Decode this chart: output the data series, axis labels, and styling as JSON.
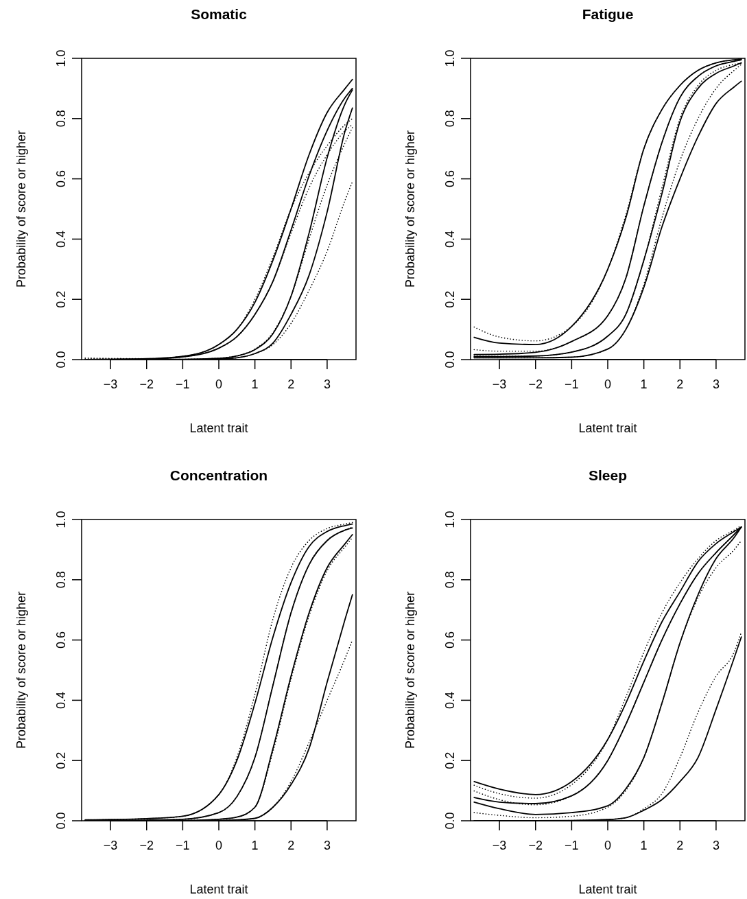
{
  "chart_data": [
    {
      "type": "line",
      "title": "Somatic",
      "xlabel": "Latent trait",
      "ylabel": "Probability of score or higher",
      "xlim": [
        -3.8,
        3.8
      ],
      "ylim": [
        0,
        1
      ],
      "xticks": [
        {
          "value": -3,
          "label": "−3"
        },
        {
          "value": -2,
          "label": "−2"
        },
        {
          "value": -1,
          "label": "−1"
        },
        0,
        1,
        2,
        3
      ],
      "yticks": [
        {
          "value": 0,
          "label": "0.0"
        },
        {
          "value": 0.2,
          "label": "0.2"
        },
        {
          "value": 0.4,
          "label": "0.4"
        },
        {
          "value": 0.6,
          "label": "0.6"
        },
        {
          "value": 0.8,
          "label": "0.8"
        },
        {
          "value": 1,
          "label": "1.0"
        }
      ],
      "x": [
        -3.7,
        -3,
        -2,
        -1,
        0,
        0.5,
        1,
        1.5,
        2,
        2.5,
        3,
        3.5,
        3.7
      ],
      "series": [
        {
          "color": "#000000",
          "line_style": "solid",
          "values": [
            0,
            0.001,
            0.003,
            0.011,
            0.05,
            0.1,
            0.19,
            0.33,
            0.5,
            0.68,
            0.82,
            0.9,
            0.93
          ]
        },
        {
          "color": "#000000",
          "line_style": "dotted",
          "values": [
            0.005,
            0.004,
            0.003,
            0.011,
            0.05,
            0.1,
            0.2,
            0.34,
            0.5,
            0.62,
            0.71,
            0.78,
            0.8
          ]
        },
        {
          "color": "#000000",
          "line_style": "solid",
          "values": [
            0,
            0.001,
            0.002,
            0.009,
            0.038,
            0.076,
            0.15,
            0.26,
            0.43,
            0.61,
            0.76,
            0.87,
            0.9
          ]
        },
        {
          "color": "#000000",
          "line_style": "dotted",
          "values": [
            0.004,
            0.003,
            0.002,
            0.009,
            0.038,
            0.076,
            0.15,
            0.26,
            0.42,
            0.57,
            0.68,
            0.76,
            0.78
          ]
        },
        {
          "color": "#000000",
          "line_style": "solid",
          "values": [
            0,
            0,
            0,
            0.001,
            0.004,
            0.012,
            0.033,
            0.086,
            0.21,
            0.42,
            0.67,
            0.85,
            0.895
          ]
        },
        {
          "color": "#000000",
          "line_style": "dotted",
          "values": [
            0,
            0,
            0,
            0.001,
            0.005,
            0.013,
            0.035,
            0.09,
            0.21,
            0.4,
            0.58,
            0.72,
            0.77
          ]
        },
        {
          "color": "#000000",
          "line_style": "solid",
          "values": [
            0,
            0,
            0,
            0,
            0.002,
            0.006,
            0.02,
            0.055,
            0.15,
            0.28,
            0.49,
            0.76,
            0.835
          ]
        },
        {
          "color": "#000000",
          "line_style": "dotted",
          "values": [
            0,
            0,
            0,
            0,
            0.002,
            0.006,
            0.02,
            0.05,
            0.12,
            0.23,
            0.36,
            0.53,
            0.59
          ]
        }
      ]
    },
    {
      "type": "line",
      "title": "Fatigue",
      "xlabel": "Latent trait",
      "ylabel": "Probability of score or higher",
      "xlim": [
        -3.8,
        3.8
      ],
      "ylim": [
        0,
        1
      ],
      "xticks": [
        {
          "value": -3,
          "label": "−3"
        },
        {
          "value": -2,
          "label": "−2"
        },
        {
          "value": -1,
          "label": "−1"
        },
        0,
        1,
        2,
        3
      ],
      "yticks": [
        {
          "value": 0,
          "label": "0.0"
        },
        {
          "value": 0.2,
          "label": "0.2"
        },
        {
          "value": 0.4,
          "label": "0.4"
        },
        {
          "value": 0.6,
          "label": "0.6"
        },
        {
          "value": 0.8,
          "label": "0.8"
        },
        {
          "value": 1,
          "label": "1.0"
        }
      ],
      "x": [
        -3.7,
        -3,
        -2,
        -1,
        0,
        0.5,
        1,
        1.5,
        2,
        2.5,
        3,
        3.5,
        3.7
      ],
      "series": [
        {
          "color": "#000000",
          "line_style": "solid",
          "values": [
            0.074,
            0.055,
            0.05,
            0.11,
            0.3,
            0.47,
            0.7,
            0.83,
            0.91,
            0.96,
            0.985,
            0.995,
            0.998
          ]
        },
        {
          "color": "#000000",
          "line_style": "dotted",
          "values": [
            0.108,
            0.075,
            0.062,
            0.11,
            0.3,
            0.48,
            0.7,
            0.83,
            0.91,
            0.96,
            0.985,
            0.995,
            0.998
          ]
        },
        {
          "color": "#000000",
          "line_style": "solid",
          "values": [
            0.017,
            0.018,
            0.024,
            0.06,
            0.146,
            0.27,
            0.51,
            0.72,
            0.87,
            0.94,
            0.975,
            0.99,
            0.995
          ]
        },
        {
          "color": "#000000",
          "line_style": "dotted",
          "values": [
            0.033,
            0.028,
            0.028,
            0.06,
            0.146,
            0.27,
            0.51,
            0.72,
            0.87,
            0.94,
            0.975,
            0.99,
            0.995
          ]
        },
        {
          "color": "#000000",
          "line_style": "solid",
          "values": [
            0.01,
            0.01,
            0.012,
            0.025,
            0.078,
            0.15,
            0.33,
            0.55,
            0.79,
            0.9,
            0.95,
            0.975,
            0.985
          ]
        },
        {
          "color": "#000000",
          "line_style": "dotted",
          "values": [
            0.012,
            0.011,
            0.012,
            0.025,
            0.078,
            0.15,
            0.33,
            0.57,
            0.8,
            0.91,
            0.96,
            0.98,
            0.985
          ]
        },
        {
          "color": "#000000",
          "line_style": "solid",
          "values": [
            0.006,
            0.006,
            0.006,
            0.008,
            0.035,
            0.1,
            0.24,
            0.44,
            0.6,
            0.74,
            0.85,
            0.905,
            0.924
          ]
        },
        {
          "color": "#000000",
          "line_style": "dotted",
          "values": [
            0.006,
            0.006,
            0.006,
            0.008,
            0.035,
            0.1,
            0.25,
            0.47,
            0.66,
            0.8,
            0.9,
            0.96,
            0.98
          ]
        }
      ]
    },
    {
      "type": "line",
      "title": "Concentration",
      "xlabel": "Latent trait",
      "ylabel": "Probability of score or higher",
      "xlim": [
        -3.8,
        3.8
      ],
      "ylim": [
        0,
        1
      ],
      "xticks": [
        {
          "value": -3,
          "label": "−3"
        },
        {
          "value": -2,
          "label": "−2"
        },
        {
          "value": -1,
          "label": "−1"
        },
        0,
        1,
        2,
        3
      ],
      "yticks": [
        {
          "value": 0,
          "label": "0.0"
        },
        {
          "value": 0.2,
          "label": "0.2"
        },
        {
          "value": 0.4,
          "label": "0.4"
        },
        {
          "value": 0.6,
          "label": "0.6"
        },
        {
          "value": 0.8,
          "label": "0.8"
        },
        {
          "value": 1,
          "label": "1.0"
        }
      ],
      "x": [
        -3.7,
        -3,
        -2,
        -1,
        0,
        0.5,
        1,
        1.5,
        2,
        2.5,
        3,
        3.5,
        3.7
      ],
      "series": [
        {
          "color": "#000000",
          "line_style": "solid",
          "values": [
            0.003,
            0.004,
            0.007,
            0.015,
            0.087,
            0.2,
            0.39,
            0.61,
            0.79,
            0.91,
            0.96,
            0.98,
            0.985
          ]
        },
        {
          "color": "#000000",
          "line_style": "dotted",
          "values": [
            0.003,
            0.004,
            0.007,
            0.015,
            0.087,
            0.21,
            0.42,
            0.67,
            0.84,
            0.93,
            0.97,
            0.985,
            0.99
          ]
        },
        {
          "color": "#000000",
          "line_style": "solid",
          "values": [
            0.001,
            0.001,
            0.002,
            0.005,
            0.027,
            0.08,
            0.21,
            0.45,
            0.69,
            0.85,
            0.93,
            0.965,
            0.972
          ]
        },
        {
          "color": "#000000",
          "line_style": "dotted",
          "values": [
            0.001,
            0.001,
            0.002,
            0.005,
            0.027,
            0.08,
            0.21,
            0.45,
            0.69,
            0.85,
            0.93,
            0.965,
            0.975
          ]
        },
        {
          "color": "#000000",
          "line_style": "solid",
          "values": [
            0,
            0,
            0,
            0.001,
            0.005,
            0.012,
            0.045,
            0.24,
            0.48,
            0.69,
            0.84,
            0.92,
            0.95
          ]
        },
        {
          "color": "#000000",
          "line_style": "dotted",
          "values": [
            0,
            0,
            0,
            0.001,
            0.005,
            0.012,
            0.045,
            0.23,
            0.47,
            0.68,
            0.83,
            0.91,
            0.94
          ]
        },
        {
          "color": "#000000",
          "line_style": "solid",
          "values": [
            0,
            0,
            0,
            0,
            0.001,
            0.003,
            0.008,
            0.045,
            0.12,
            0.24,
            0.46,
            0.67,
            0.75
          ]
        },
        {
          "color": "#000000",
          "line_style": "dotted",
          "values": [
            0,
            0,
            0,
            0,
            0.001,
            0.003,
            0.008,
            0.045,
            0.13,
            0.26,
            0.4,
            0.54,
            0.6
          ]
        }
      ]
    },
    {
      "type": "line",
      "title": "Sleep",
      "xlabel": "Latent trait",
      "ylabel": "Probability of score or higher",
      "xlim": [
        -3.8,
        3.8
      ],
      "ylim": [
        0,
        1
      ],
      "xticks": [
        {
          "value": -3,
          "label": "−3"
        },
        {
          "value": -2,
          "label": "−2"
        },
        {
          "value": -1,
          "label": "−1"
        },
        0,
        1,
        2,
        3
      ],
      "yticks": [
        {
          "value": 0,
          "label": "0.0"
        },
        {
          "value": 0.2,
          "label": "0.2"
        },
        {
          "value": 0.4,
          "label": "0.4"
        },
        {
          "value": 0.6,
          "label": "0.6"
        },
        {
          "value": 0.8,
          "label": "0.8"
        },
        {
          "value": 1,
          "label": "1.0"
        }
      ],
      "x": [
        -3.7,
        -3,
        -2,
        -1,
        0,
        0.5,
        1,
        1.5,
        2,
        2.5,
        3,
        3.5,
        3.7
      ],
      "series": [
        {
          "color": "#000000",
          "line_style": "solid",
          "values": [
            0.13,
            0.105,
            0.087,
            0.13,
            0.27,
            0.39,
            0.53,
            0.66,
            0.76,
            0.86,
            0.92,
            0.96,
            0.975
          ]
        },
        {
          "color": "#000000",
          "line_style": "dotted",
          "values": [
            0.118,
            0.09,
            0.075,
            0.12,
            0.27,
            0.41,
            0.56,
            0.69,
            0.79,
            0.87,
            0.93,
            0.965,
            0.98
          ]
        },
        {
          "color": "#000000",
          "line_style": "solid",
          "values": [
            0.077,
            0.062,
            0.057,
            0.083,
            0.2,
            0.32,
            0.46,
            0.6,
            0.72,
            0.82,
            0.89,
            0.95,
            0.975
          ]
        },
        {
          "color": "#000000",
          "line_style": "dotted",
          "values": [
            0.099,
            0.07,
            0.053,
            0.083,
            0.2,
            0.32,
            0.46,
            0.6,
            0.72,
            0.82,
            0.89,
            0.95,
            0.975
          ]
        },
        {
          "color": "#000000",
          "line_style": "solid",
          "values": [
            0.062,
            0.04,
            0.021,
            0.027,
            0.05,
            0.106,
            0.21,
            0.39,
            0.59,
            0.75,
            0.87,
            0.94,
            0.975
          ]
        },
        {
          "color": "#000000",
          "line_style": "dotted",
          "values": [
            0.027,
            0.018,
            0.01,
            0.015,
            0.045,
            0.1,
            0.21,
            0.39,
            0.59,
            0.74,
            0.84,
            0.9,
            0.93
          ]
        },
        {
          "color": "#000000",
          "line_style": "solid",
          "values": [
            0,
            0,
            0,
            0.001,
            0.004,
            0.01,
            0.035,
            0.07,
            0.13,
            0.21,
            0.37,
            0.54,
            0.61
          ]
        },
        {
          "color": "#000000",
          "line_style": "dotted",
          "values": [
            0,
            0,
            0,
            0.001,
            0.004,
            0.01,
            0.04,
            0.09,
            0.21,
            0.36,
            0.48,
            0.56,
            0.626
          ]
        }
      ]
    }
  ]
}
